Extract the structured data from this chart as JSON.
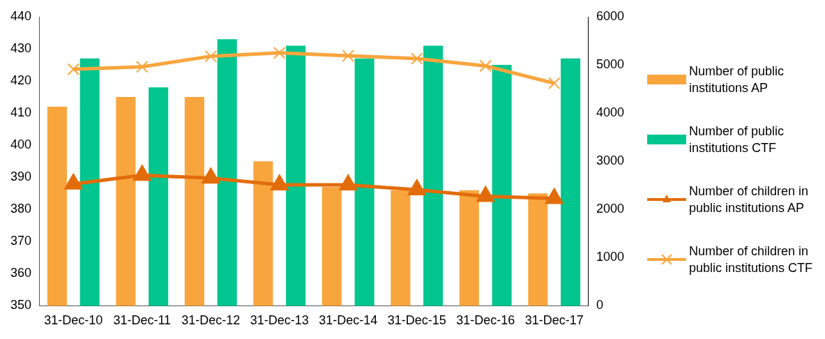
{
  "chart_data": {
    "type": "bar",
    "categories": [
      "31-Dec-10",
      "31-Dec-11",
      "31-Dec-12",
      "31-Dec-13",
      "31-Dec-14",
      "31-Dec-15",
      "31-Dec-16",
      "31-Dec-17"
    ],
    "series": [
      {
        "name": "Number of public institutions AP",
        "color": "#f9a53d",
        "values": [
          412,
          415,
          415,
          395,
          387,
          386,
          386,
          385
        ]
      },
      {
        "name": "Number of public institutions CTF",
        "color": "#02c58f",
        "values": [
          427,
          418,
          433,
          431,
          427,
          431,
          425,
          427
        ]
      },
      {
        "name": "Number of children in public institutions AP",
        "type": "line",
        "axis": "y2",
        "marker": "triangle",
        "color": "#e36c0a",
        "values": [
          2530,
          2710,
          2650,
          2510,
          2510,
          2410,
          2270,
          2230
        ]
      },
      {
        "name": "Number of children in public institutions CTF",
        "type": "line",
        "axis": "y2",
        "marker": "cross",
        "color": "#f9a53d",
        "values": [
          4910,
          4960,
          5180,
          5250,
          5190,
          5130,
          4980,
          4620
        ]
      }
    ],
    "ylim": [
      350,
      440
    ],
    "yticks": [
      350,
      360,
      370,
      380,
      390,
      400,
      410,
      420,
      430,
      440
    ],
    "y2lim": [
      0,
      6000
    ],
    "y2ticks": [
      0,
      1000,
      2000,
      3000,
      4000,
      5000,
      6000
    ],
    "grid": false,
    "legend": "right"
  }
}
